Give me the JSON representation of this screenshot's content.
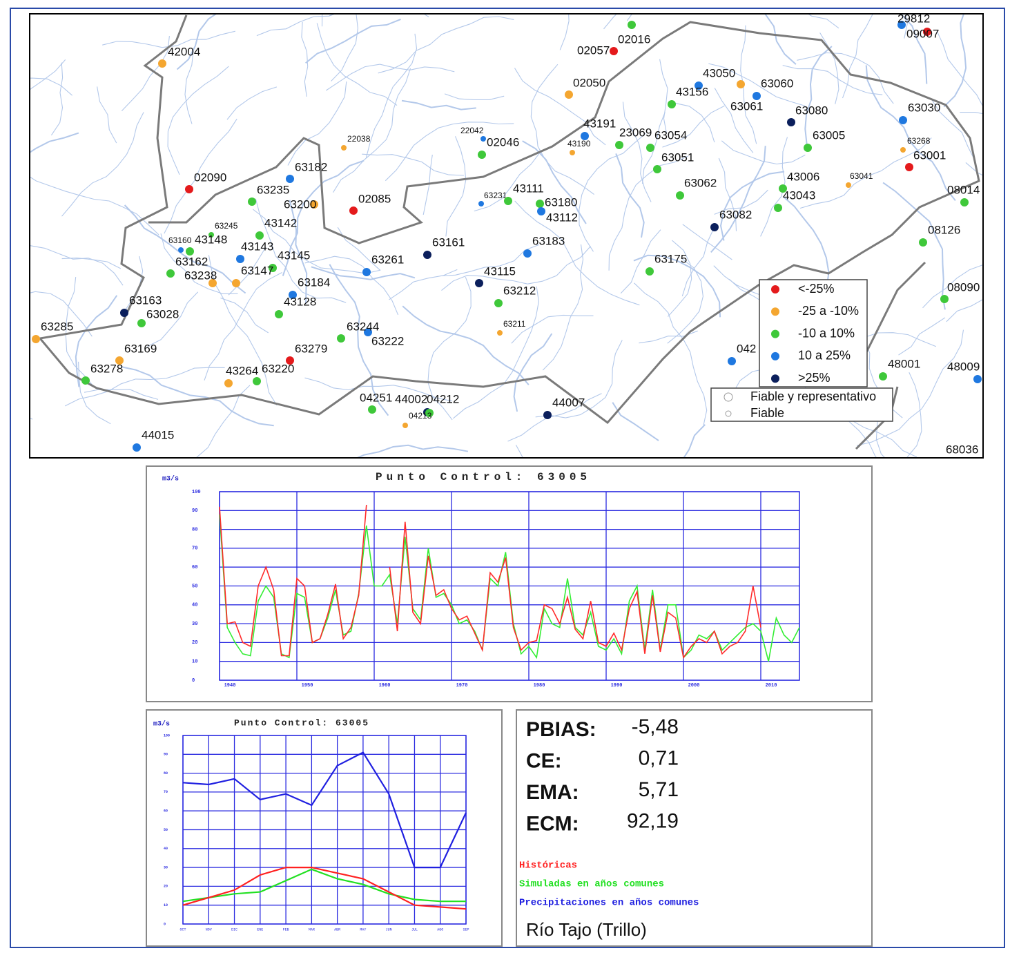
{
  "map": {
    "legend": [
      {
        "label": "<-25%",
        "color": "#e41a1c"
      },
      {
        "label": "-25 a -10%",
        "color": "#f4a630"
      },
      {
        "label": "-10 a 10%",
        "color": "#3fc83a"
      },
      {
        "label": "10 a 25%",
        "color": "#1f78e0"
      },
      {
        "label": ">25%",
        "color": "#0b1f5c"
      }
    ],
    "legend2": [
      "Fiable y representativo",
      "Fiable"
    ],
    "stations": [
      {
        "id": "42004",
        "class": 1
      },
      {
        "id": "02090",
        "class": 0
      },
      {
        "id": "63182",
        "class": 3
      },
      {
        "id": "63235",
        "class": 2
      },
      {
        "id": "63200",
        "class": 1
      },
      {
        "id": "02085",
        "class": 0
      },
      {
        "id": "22038",
        "class": 1
      },
      {
        "id": "63245",
        "class": 2
      },
      {
        "id": "43142",
        "class": 2
      },
      {
        "id": "63160",
        "class": 3
      },
      {
        "id": "43148",
        "class": 2
      },
      {
        "id": "43143",
        "class": 3
      },
      {
        "id": "43145",
        "class": 2
      },
      {
        "id": "63162",
        "class": 2
      },
      {
        "id": "63238",
        "class": 1
      },
      {
        "id": "63147",
        "class": 1
      },
      {
        "id": "63184",
        "class": 3
      },
      {
        "id": "43128",
        "class": 2
      },
      {
        "id": "63261",
        "class": 3
      },
      {
        "id": "63161",
        "class": 4
      },
      {
        "id": "63163",
        "class": 4
      },
      {
        "id": "63028",
        "class": 2
      },
      {
        "id": "63285",
        "class": 1
      },
      {
        "id": "63169",
        "class": 1
      },
      {
        "id": "63278",
        "class": 2
      },
      {
        "id": "63244",
        "class": 3
      },
      {
        "id": "63222",
        "class": 2
      },
      {
        "id": "63279",
        "class": 0
      },
      {
        "id": "43264",
        "class": 1
      },
      {
        "id": "63220",
        "class": 2
      },
      {
        "id": "02046",
        "class": 2
      },
      {
        "id": "22042",
        "class": 3
      },
      {
        "id": "63231",
        "class": 3
      },
      {
        "id": "43111",
        "class": 2
      },
      {
        "id": "63180",
        "class": 2
      },
      {
        "id": "43112",
        "class": 3
      },
      {
        "id": "63183",
        "class": 3
      },
      {
        "id": "43115",
        "class": 4
      },
      {
        "id": "63212",
        "class": 2
      },
      {
        "id": "63211",
        "class": 1
      },
      {
        "id": "02057",
        "class": 0
      },
      {
        "id": "02016",
        "class": 2
      },
      {
        "id": "02050",
        "class": 1
      },
      {
        "id": "43191",
        "class": 3
      },
      {
        "id": "43190",
        "class": 1
      },
      {
        "id": "23069",
        "class": 2
      },
      {
        "id": "63054",
        "class": 2
      },
      {
        "id": "63051",
        "class": 2
      },
      {
        "id": "63062",
        "class": 2
      },
      {
        "id": "63082",
        "class": 4
      },
      {
        "id": "63175",
        "class": 2
      },
      {
        "id": "43050",
        "class": 3
      },
      {
        "id": "43156",
        "class": 2
      },
      {
        "id": "63060",
        "class": 1
      },
      {
        "id": "63061",
        "class": 3
      },
      {
        "id": "63080",
        "class": 4
      },
      {
        "id": "63005",
        "class": 2
      },
      {
        "id": "43006",
        "class": 2
      },
      {
        "id": "43043",
        "class": 2
      },
      {
        "id": "63030",
        "class": 3
      },
      {
        "id": "63001",
        "class": 0
      },
      {
        "id": "63268",
        "class": 1
      },
      {
        "id": "63041",
        "class": 1
      },
      {
        "id": "08014",
        "class": 2
      },
      {
        "id": "08126",
        "class": 2
      },
      {
        "id": "08090",
        "class": 2
      },
      {
        "id": "48001",
        "class": 2
      },
      {
        "id": "48009",
        "class": 3
      },
      {
        "id": "042",
        "class": 3
      },
      {
        "id": "29812",
        "class": 3
      },
      {
        "id": "09007",
        "class": 0
      },
      {
        "id": "04251",
        "class": 2
      },
      {
        "id": "44002",
        "class": 4
      },
      {
        "id": "04212",
        "class": 2
      },
      {
        "id": "04213",
        "class": 1
      },
      {
        "id": "44007",
        "class": 4
      },
      {
        "id": "44015",
        "class": 3
      },
      {
        "id": "68036",
        "class": 2
      }
    ]
  },
  "chart_data": [
    {
      "type": "line",
      "title": "Punto Control: 63005",
      "y_label": "m3/s",
      "x": [
        1940,
        1941,
        1942,
        1943,
        1944,
        1945,
        1946,
        1947,
        1948,
        1949,
        1950,
        1951,
        1952,
        1953,
        1954,
        1955,
        1956,
        1957,
        1958,
        1959,
        1960,
        1961,
        1962,
        1963,
        1964,
        1965,
        1966,
        1967,
        1968,
        1969,
        1970,
        1971,
        1972,
        1973,
        1974,
        1975,
        1976,
        1977,
        1978,
        1979,
        1980,
        1981,
        1982,
        1983,
        1984,
        1985,
        1986,
        1987,
        1988,
        1989,
        1990,
        1991,
        1992,
        1993,
        1994,
        1995,
        1996,
        1997,
        1998,
        1999,
        2000,
        2001,
        2002,
        2003,
        2004,
        2005,
        2006,
        2007,
        2008,
        2009,
        2010,
        2011,
        2012,
        2013,
        2014,
        2015
      ],
      "series": [
        {
          "name": "Históricas",
          "color": "#ff2a2a",
          "values": [
            92,
            30,
            31,
            20,
            18,
            50,
            60,
            48,
            13,
            13,
            54,
            50,
            20,
            22,
            35,
            51,
            22,
            28,
            45,
            93,
            null,
            null,
            60,
            26,
            84,
            36,
            30,
            66,
            45,
            48,
            38,
            32,
            34,
            25,
            16,
            57,
            52,
            65,
            28,
            16,
            20,
            21,
            40,
            38,
            30,
            44,
            27,
            22,
            42,
            20,
            18,
            25,
            16,
            38,
            47,
            14,
            45,
            15,
            36,
            33,
            12,
            18,
            22,
            20,
            26,
            14,
            18,
            20,
            26,
            50,
            28,
            null,
            null,
            null,
            null,
            null
          ]
        },
        {
          "name": "Simuladas en años comunes",
          "color": "#33ee33",
          "values": [
            88,
            28,
            20,
            14,
            13,
            42,
            50,
            44,
            14,
            12,
            46,
            44,
            20,
            22,
            33,
            48,
            24,
            26,
            46,
            82,
            50,
            50,
            56,
            30,
            76,
            38,
            32,
            70,
            44,
            46,
            40,
            30,
            32,
            26,
            16,
            54,
            50,
            68,
            30,
            14,
            18,
            12,
            38,
            30,
            28,
            54,
            28,
            24,
            36,
            18,
            16,
            22,
            14,
            42,
            50,
            16,
            48,
            16,
            40,
            40,
            12,
            16,
            24,
            22,
            26,
            16,
            20,
            24,
            28,
            30,
            26,
            10,
            33,
            24,
            20,
            28
          ]
        }
      ],
      "xlim": [
        1940,
        2015
      ],
      "xticks": [
        1940,
        1950,
        1960,
        1970,
        1980,
        1990,
        2000,
        2010
      ],
      "ylim": [
        0,
        100
      ],
      "yticks": [
        0,
        10,
        20,
        30,
        40,
        50,
        60,
        70,
        80,
        90,
        100
      ],
      "grid": true
    },
    {
      "type": "line",
      "title": "Punto Control: 63005",
      "y_label": "m3/s",
      "categories": [
        "OCT",
        "NOV",
        "DIC",
        "ENE",
        "FEB",
        "MAR",
        "ABR",
        "MAY",
        "JUN",
        "JUL",
        "AGO",
        "SEP"
      ],
      "series": [
        {
          "name": "Históricas",
          "color": "#ff2020",
          "values": [
            10,
            14,
            18,
            26,
            30,
            30,
            27,
            24,
            17,
            10,
            9,
            8
          ]
        },
        {
          "name": "Simuladas en años comunes",
          "color": "#22e022",
          "values": [
            12,
            14,
            16,
            17,
            23,
            29,
            24,
            21,
            16,
            13,
            12,
            12
          ]
        },
        {
          "name": "Precipitaciones en años comunes",
          "color": "#2020e0",
          "values": [
            75,
            74,
            77,
            66,
            69,
            63,
            84,
            91,
            69,
            30,
            30,
            59
          ]
        }
      ],
      "ylim": [
        0,
        100
      ],
      "yticks": [
        0,
        10,
        20,
        30,
        40,
        50,
        60,
        70,
        80,
        90,
        100
      ],
      "grid": true
    }
  ],
  "stats": {
    "rows": [
      {
        "label": "PBIAS:",
        "value": "-5,48"
      },
      {
        "label": "CE:",
        "value": "0,71"
      },
      {
        "label": "EMA:",
        "value": "5,71"
      },
      {
        "label": "ECM:",
        "value": "92,19"
      }
    ],
    "station": "Río Tajo (Trillo)"
  }
}
